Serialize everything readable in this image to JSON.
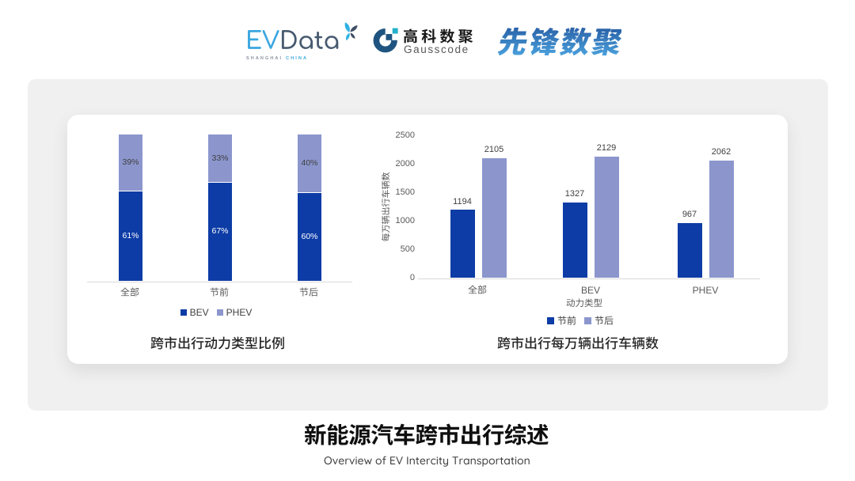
{
  "header": {
    "evdata": {
      "wordmark_ev": "EV",
      "wordmark_data": "Data",
      "wordmark": "EVData",
      "tagline_left": "SHANGHAI",
      "tagline_right": "CHINA",
      "color_ev": "#3aa6df",
      "color_data": "#475a70"
    },
    "gausscode": {
      "name_cn": "高科数聚",
      "name_en": "Gausscode",
      "icon": "gausscode-g-icon",
      "color_mark": "#1f5480",
      "color_accent": "#23b0ca"
    },
    "xianfeng": {
      "name_cn": "先锋数聚",
      "color": "#2f7fc1"
    }
  },
  "chart_data": [
    {
      "type": "bar",
      "variant": "stacked-percent",
      "title": "跨市出行动力类型比例",
      "categories": [
        "全部",
        "节前",
        "节后"
      ],
      "series": [
        {
          "name": "BEV",
          "color": "#0d3ca6",
          "values": [
            61,
            67,
            60
          ]
        },
        {
          "name": "PHEV",
          "color": "#8c96cd",
          "values": [
            39,
            33,
            40
          ]
        }
      ],
      "value_suffix": "%",
      "legend": [
        "BEV",
        "PHEV"
      ],
      "legend_position": "bottom",
      "ylim": [
        0,
        100
      ],
      "grid": false
    },
    {
      "type": "bar",
      "variant": "grouped",
      "title": "跨市出行每万辆出行车辆数",
      "categories": [
        "全部",
        "BEV",
        "PHEV"
      ],
      "xlabel": "动力类型",
      "ylabel": "每万辆出行车辆数",
      "ylim": [
        0,
        2500
      ],
      "yticks": [
        0,
        500,
        1000,
        1500,
        2000,
        2500
      ],
      "series": [
        {
          "name": "节前",
          "color": "#0d3ca6",
          "values": [
            1194,
            1327,
            967
          ]
        },
        {
          "name": "节后",
          "color": "#8c96cd",
          "values": [
            2105,
            2129,
            2062
          ]
        }
      ],
      "legend": [
        "节前",
        "节后"
      ],
      "legend_position": "bottom",
      "grid": false
    }
  ],
  "footer": {
    "title": "新能源汽车跨市出行综述",
    "subtitle": "Overview of EV Intercity Transportation"
  },
  "colors": {
    "page_bg": "#ffffff",
    "panel_bg": "#f0f0f0",
    "card_bg": "#ffffff",
    "series_dark_blue": "#0d3ca6",
    "series_light_blue": "#8c96cd",
    "axis_line": "#d9d9d9",
    "tick_label": "#595959",
    "value_label": "#404040",
    "chart_title": "#262626"
  }
}
